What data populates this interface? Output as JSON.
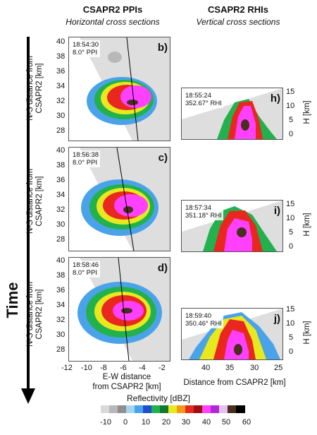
{
  "headers": {
    "ppi_title": "CSAPR2 PPIs",
    "ppi_subtitle": "Horizontal cross sections",
    "rhi_title": "CSAPR2 RHIs",
    "rhi_subtitle": "Vertical cross sections"
  },
  "time_label": "Time",
  "ppi_axes": {
    "ylabel": "N-S distance from CSAPR2 [km]",
    "yticks": [
      "40",
      "38",
      "36",
      "34",
      "32",
      "30",
      "28"
    ],
    "xticks": [
      "-12",
      "-10",
      "-8",
      "-6",
      "-4",
      "-2"
    ],
    "xlabel_line1": "E-W distance",
    "xlabel_line2": "from CSAPR2 [km]"
  },
  "rhi_axes": {
    "ylabel": "H [km]",
    "yticks": [
      "15",
      "10",
      "5",
      "0"
    ],
    "xticks": [
      "40",
      "35",
      "30",
      "25"
    ],
    "xlabel": "Distance from CSAPR2 [km]"
  },
  "ppi_panels": [
    {
      "time": "18:54:30",
      "scan": "8.0° PPI",
      "letter": "b)"
    },
    {
      "time": "18:56:38",
      "scan": "8.0° PPI",
      "letter": "c)"
    },
    {
      "time": "18:58:46",
      "scan": "8.0° PPI",
      "letter": "d)"
    }
  ],
  "rhi_panels": [
    {
      "time": "18:55:24",
      "scan": "352.67° RHI",
      "letter": "h)"
    },
    {
      "time": "18:57:34",
      "scan": "351.18° RHI",
      "letter": "i)"
    },
    {
      "time": "18:59:40",
      "scan": "350.46° RHI",
      "letter": "j)"
    }
  ],
  "colorbar": {
    "title": "Reflectivity [dBZ]",
    "ticks": [
      "-10",
      "0",
      "10",
      "20",
      "30",
      "40",
      "50",
      "60"
    ],
    "colors": [
      "#d9d9d9",
      "#b8b8b8",
      "#8f8f8f",
      "#a6d4ef",
      "#4aa3e8",
      "#1c4fcf",
      "#22b14c",
      "#107a30",
      "#e8e81e",
      "#f59a16",
      "#e8281e",
      "#9e0f0f",
      "#ff40ff",
      "#b026d8",
      "#e6c0f0",
      "#4a2e1e",
      "#000000"
    ]
  }
}
